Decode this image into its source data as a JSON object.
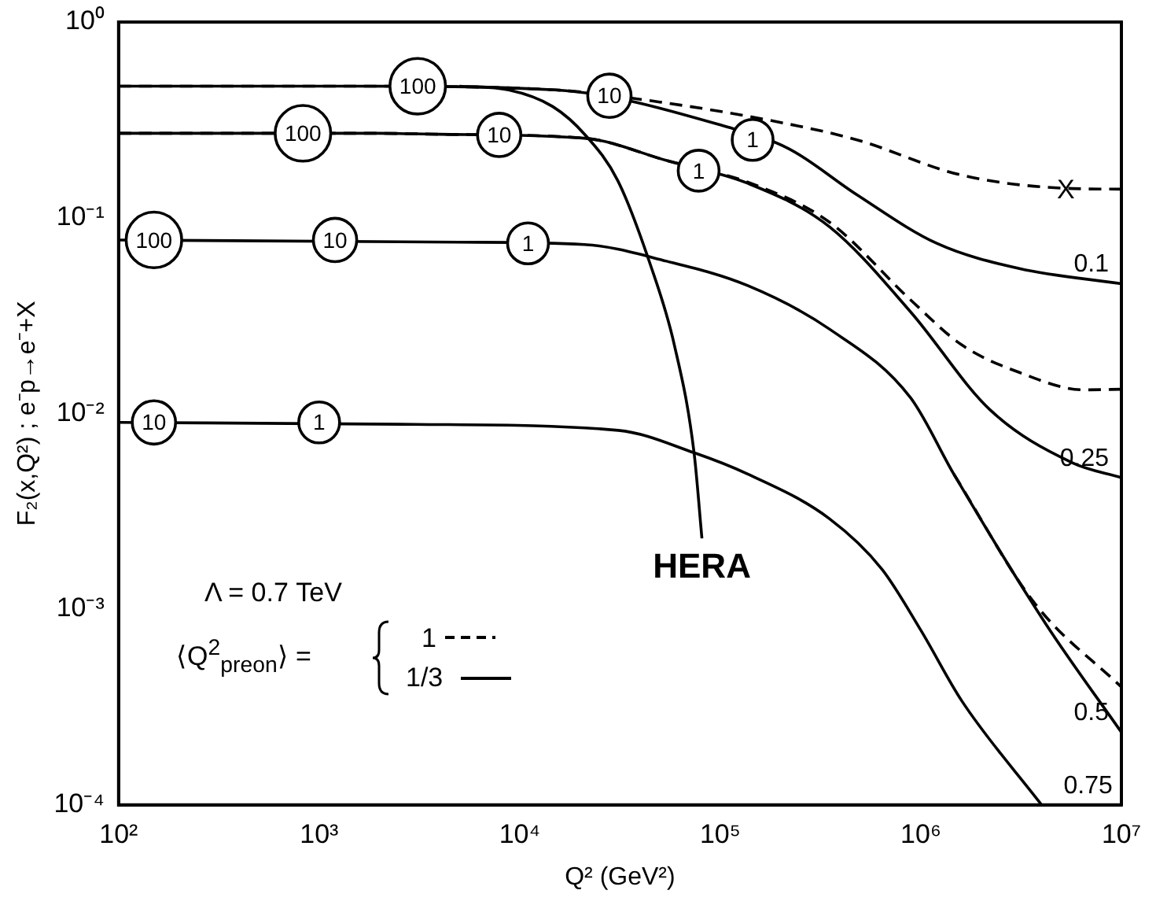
{
  "chart_data": {
    "type": "line",
    "xlabel": "Q² (GeV²)",
    "ylabel": "F₂(x,Q²) ; e⁻p→e⁻+X",
    "log": "xy",
    "grid": false,
    "legend": false,
    "marker": "none",
    "xlim": [
      100,
      10000000
    ],
    "ylim": [
      0.0001,
      1
    ],
    "xticks": [
      {
        "value": 100,
        "label": "10²"
      },
      {
        "value": 1000,
        "label": "10³"
      },
      {
        "value": 10000,
        "label": "10⁴"
      },
      {
        "value": 100000,
        "label": "10⁵"
      },
      {
        "value": 1000000,
        "label": "10⁶"
      },
      {
        "value": 10000000,
        "label": "10⁷"
      }
    ],
    "yticks": [
      {
        "value": 0.0001,
        "label": "10⁻⁴"
      },
      {
        "value": 0.001,
        "label": "10⁻³"
      },
      {
        "value": 0.01,
        "label": "10⁻²"
      },
      {
        "value": 0.1,
        "label": "10⁻¹"
      },
      {
        "value": 1,
        "label": "10⁰"
      }
    ],
    "series": [
      {
        "name": "0.1",
        "color": "#000000",
        "line_style": "solid",
        "x": [
          100,
          1500,
          15000,
          110000,
          220000,
          480000,
          1200000,
          3100000,
          10000000
        ],
        "values": [
          0.47,
          0.47,
          0.45,
          0.29,
          0.225,
          0.131,
          0.074,
          0.055,
          0.046
        ]
      },
      {
        "color": "#000000",
        "line_style": "dashed",
        "x": [
          100,
          1500,
          15000,
          50000,
          190000,
          480000,
          1600000,
          5700000,
          10000000
        ],
        "values": [
          0.47,
          0.47,
          0.45,
          0.39,
          0.31,
          0.25,
          0.165,
          0.141,
          0.14
        ]
      },
      {
        "name": "0.25",
        "color": "#000000",
        "line_style": "solid",
        "x": [
          100,
          2000,
          4000,
          21000,
          55000,
          137000,
          350000,
          890000,
          2200000,
          5700000,
          10000000
        ],
        "values": [
          0.27,
          0.27,
          0.267,
          0.255,
          0.195,
          0.15,
          0.09,
          0.033,
          0.0105,
          0.0056,
          0.0047
        ]
      },
      {
        "color": "#000000",
        "line_style": "dashed",
        "x": [
          100,
          2000,
          4000,
          21000,
          55000,
          137000,
          350000,
          890000,
          1600000,
          3100000,
          6500000,
          10000000
        ],
        "values": [
          0.27,
          0.27,
          0.267,
          0.255,
          0.195,
          0.152,
          0.095,
          0.038,
          0.0224,
          0.0162,
          0.0132,
          0.0133
        ]
      },
      {
        "name": "0.5",
        "color": "#000000",
        "line_style": "solid",
        "x": [
          100,
          5000,
          21000,
          54000,
          137000,
          350000,
          890000,
          1460000,
          4200000,
          10000000
        ],
        "values": [
          0.077,
          0.075,
          0.073,
          0.06,
          0.045,
          0.027,
          0.012,
          0.0049,
          0.00084,
          0.000235
        ]
      },
      {
        "color": "#000000",
        "line_style": "dashed",
        "x": [
          1460000,
          3700000,
          10000000
        ],
        "values": [
          0.0049,
          0.00107,
          0.0004
        ]
      },
      {
        "name": "0.75",
        "color": "#000000",
        "line_style": "solid",
        "x": [
          100,
          3000,
          31000,
          74000,
          137000,
          350000,
          640000,
          1000000,
          1600000,
          4000000
        ],
        "values": [
          0.009,
          0.0088,
          0.0082,
          0.0063,
          0.0049,
          0.0029,
          0.0016,
          0.00078,
          0.00034,
          0.0001
        ]
      },
      {
        "name": "HERA",
        "color": "#000000",
        "line_style": "solid",
        "x": [
          5000,
          8800,
          14600,
          21200,
          30800,
          44700,
          59000,
          74000,
          81000
        ],
        "values": [
          0.47,
          0.45,
          0.37,
          0.265,
          0.155,
          0.058,
          0.0224,
          0.0063,
          0.0023
        ]
      }
    ],
    "annotations": [
      "X",
      "Λ = 0.7 TeV",
      "⟨Q$^{2}$$_{preon}$⟩ =",
      "1",
      "1/3",
      {
        "text": "100",
        "x": 3100,
        "y": 0.47
      },
      {
        "text": "10",
        "x": 28000,
        "y": 0.42
      },
      {
        "text": "1",
        "x": 145000,
        "y": 0.25
      },
      {
        "text": "100",
        "x": 830,
        "y": 0.27
      },
      {
        "text": "10",
        "x": 7900,
        "y": 0.265
      },
      {
        "text": "1",
        "x": 78000,
        "y": 0.174
      },
      {
        "text": "100",
        "x": 150,
        "y": 0.077
      },
      {
        "text": "10",
        "x": 1200,
        "y": 0.077
      },
      {
        "text": "1",
        "x": 11000,
        "y": 0.074
      },
      {
        "text": "10",
        "x": 150,
        "y": 0.009
      },
      {
        "text": "1",
        "x": 1000,
        "y": 0.009
      }
    ]
  }
}
